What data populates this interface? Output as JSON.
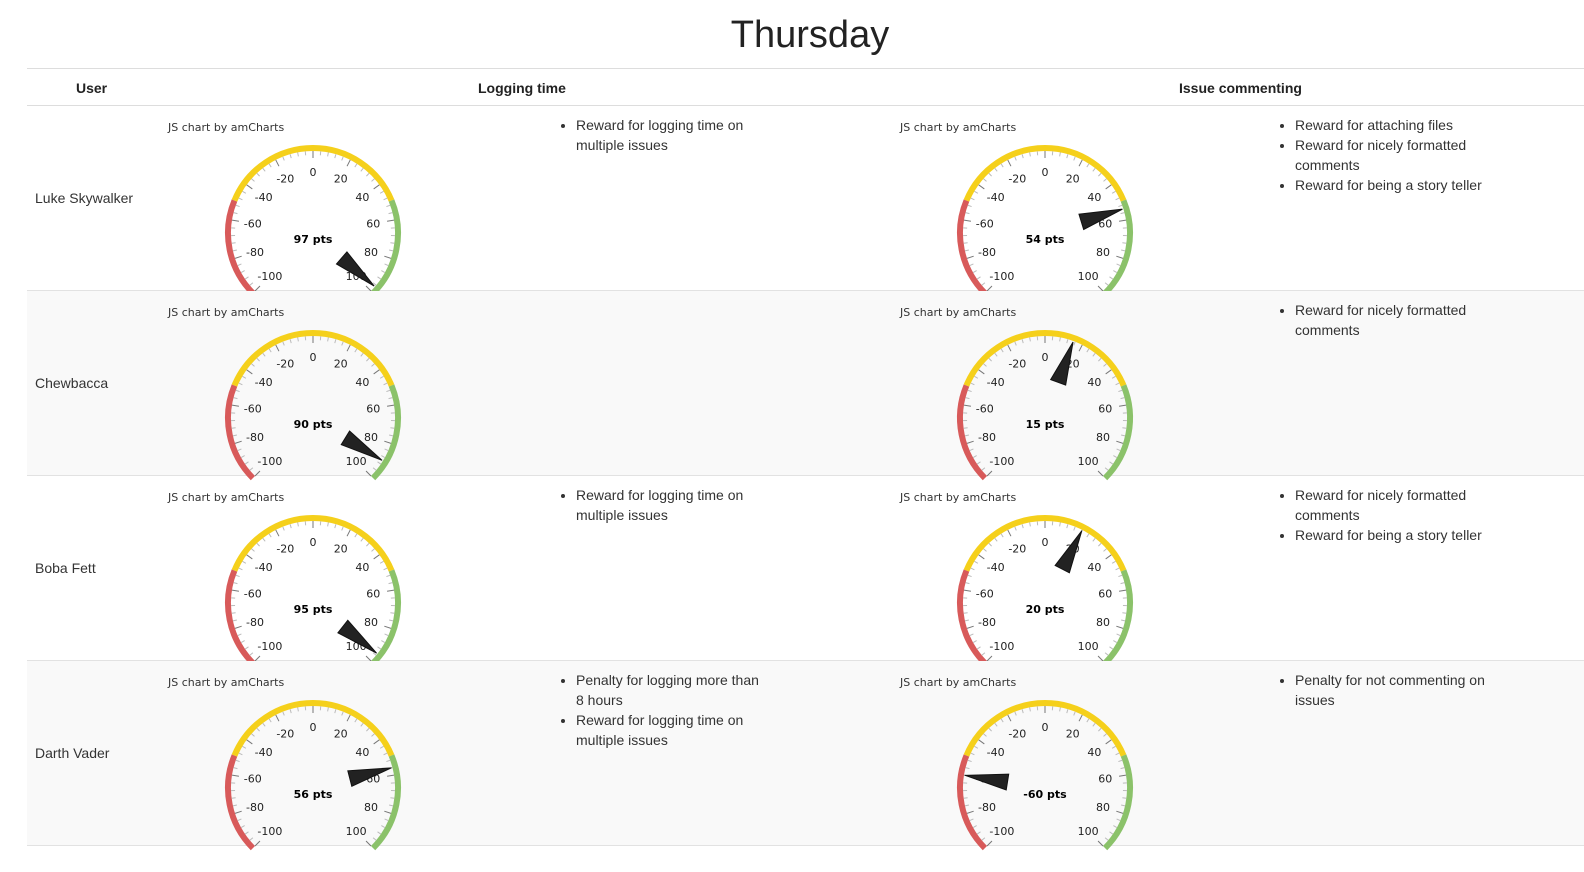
{
  "page": {
    "title": "Thursday"
  },
  "table": {
    "headers": {
      "user": "User",
      "logging": "Logging time",
      "commenting": "Issue commenting"
    }
  },
  "gauge": {
    "credit": "JS chart by amCharts",
    "min": -100,
    "max": 100,
    "ticks": [
      "-100",
      "-80",
      "-60",
      "-40",
      "-20",
      "0",
      "20",
      "40",
      "60",
      "80",
      "100"
    ],
    "bands": [
      {
        "from": -100,
        "to": -50,
        "color": "#d85a5a"
      },
      {
        "from": -50,
        "to": 50,
        "color": "#f5d01b"
      },
      {
        "from": 50,
        "to": 100,
        "color": "#8bc26a"
      }
    ]
  },
  "rows": [
    {
      "user": "Luke Skywalker",
      "logging": {
        "value": 97,
        "label": "97 pts",
        "items": [
          "Reward for logging time on multiple issues"
        ]
      },
      "commenting": {
        "value": 54,
        "label": "54 pts",
        "items": [
          "Reward for attaching files",
          "Reward for nicely formatted comments",
          "Reward for being a story teller"
        ]
      }
    },
    {
      "user": "Chewbacca",
      "logging": {
        "value": 90,
        "label": "90 pts",
        "items": []
      },
      "commenting": {
        "value": 15,
        "label": "15 pts",
        "items": [
          "Reward for nicely formatted comments"
        ]
      }
    },
    {
      "user": "Boba Fett",
      "logging": {
        "value": 95,
        "label": "95 pts",
        "items": [
          "Reward for logging time on multiple issues"
        ]
      },
      "commenting": {
        "value": 20,
        "label": "20 pts",
        "items": [
          "Reward for nicely formatted comments",
          "Reward for being a story teller"
        ]
      }
    },
    {
      "user": "Darth Vader",
      "logging": {
        "value": 56,
        "label": "56 pts",
        "items": [
          "Penalty for logging more than 8 hours",
          "Reward for logging time on multiple issues"
        ]
      },
      "commenting": {
        "value": -60,
        "label": "-60 pts",
        "items": [
          "Penalty for not commenting on issues"
        ]
      }
    }
  ]
}
